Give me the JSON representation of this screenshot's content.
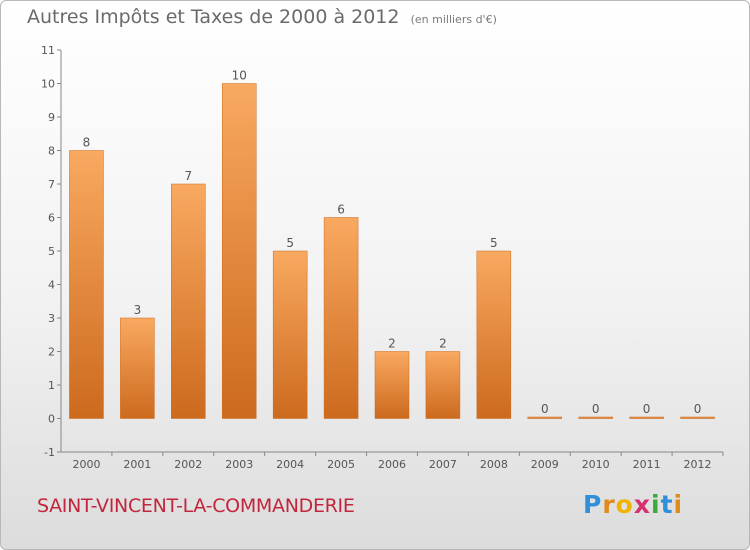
{
  "header": {
    "title": "Autres Impôts et Taxes de 2000 à 2012",
    "unit": "(en milliers d'€)"
  },
  "footer": {
    "commune": "SAINT-VINCENT-LA-COMMANDERIE",
    "logo_letters": [
      "P",
      "r",
      "o",
      "x",
      "i",
      "t",
      "i"
    ],
    "logo_colors": [
      "#2f8fd8",
      "#e08a1c",
      "#f0b400",
      "#d6306f",
      "#3aaa3a",
      "#2f8fd8",
      "#e08a1c"
    ]
  },
  "colors": {
    "bar_light": "#f9a960",
    "bar_dark": "#cc6a1e",
    "label": "#555555",
    "axis": "#888888",
    "title": "#6a6a6a",
    "commune": "#c2263c"
  },
  "chart_data": {
    "type": "bar",
    "title": "Autres Impôts et Taxes de 2000 à 2012",
    "subtitle": "(en milliers d'€)",
    "xlabel": "",
    "ylabel": "",
    "categories": [
      "2000",
      "2001",
      "2002",
      "2003",
      "2004",
      "2005",
      "2006",
      "2007",
      "2008",
      "2009",
      "2010",
      "2011",
      "2012"
    ],
    "values": [
      8,
      3,
      7,
      10,
      5,
      6,
      2,
      2,
      5,
      0,
      0,
      0,
      0
    ],
    "data_labels": [
      "8",
      "3",
      "7",
      "10",
      "5",
      "6",
      "2",
      "2",
      "5",
      "0",
      "0",
      "0",
      "0"
    ],
    "y_ticks": [
      "-1",
      "0",
      "1",
      "2",
      "3",
      "4",
      "5",
      "6",
      "7",
      "8",
      "9",
      "10",
      "11"
    ],
    "ylim": [
      -1,
      11
    ],
    "grid": false,
    "legend": "none"
  }
}
